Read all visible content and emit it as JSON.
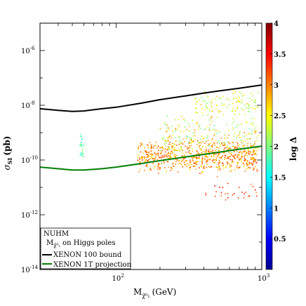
{
  "chart_data": {
    "type": "scatter",
    "xscale": "log",
    "yscale": "log",
    "xlim": [
      30,
      1000
    ],
    "ylim": [
      1e-14,
      1e-05
    ],
    "xticks": [
      {
        "value": 100,
        "label": "10",
        "exp": "2"
      },
      {
        "value": 1000,
        "label": "10",
        "exp": "3"
      }
    ],
    "yticks": [
      {
        "value": 1e-06,
        "label": "10",
        "exp": "-6"
      },
      {
        "value": 1e-08,
        "label": "10",
        "exp": "-8"
      },
      {
        "value": 1e-10,
        "label": "10",
        "exp": "-10"
      },
      {
        "value": 1e-12,
        "label": "10",
        "exp": "-12"
      },
      {
        "value": 1e-14,
        "label": "10",
        "exp": "-14"
      }
    ],
    "xlabel": "M",
    "xlabel_sub": "χ̃⁰₁",
    "xlabel_unit": "(GeV)",
    "ylabel": "σ",
    "ylabel_sub": "SI",
    "ylabel_unit": "(pb)",
    "colorbar": {
      "label": "log Δ",
      "range": [
        0,
        4
      ],
      "ticks": [
        "0.5",
        "1",
        "1.5",
        "2",
        "2.5",
        "3",
        "3.5",
        "4"
      ],
      "tick_values": [
        0.5,
        1,
        1.5,
        2,
        2.5,
        3,
        3.5,
        4
      ],
      "colormap": [
        "#00008f",
        "#0000ff",
        "#0080ff",
        "#00ffff",
        "#80ff80",
        "#ffff00",
        "#ff8000",
        "#ff0000",
        "#800000"
      ]
    },
    "series": [
      {
        "name": "XENON 100 bound",
        "color": "#000000",
        "x": [
          30,
          40,
          50,
          60,
          80,
          100,
          150,
          200,
          300,
          400,
          500,
          700,
          1000
        ],
        "y": [
          7.5e-09,
          6.5e-09,
          6e-09,
          6.2e-09,
          7.5e-09,
          8.5e-09,
          1.2e-08,
          1.6e-08,
          2.2e-08,
          2.8e-08,
          3.3e-08,
          4.2e-08,
          5.5e-08
        ]
      },
      {
        "name": "XENON 1T projection",
        "color": "#008000",
        "x": [
          30,
          40,
          50,
          60,
          80,
          100,
          150,
          200,
          300,
          400,
          500,
          700,
          1000
        ],
        "y": [
          5.5e-11,
          4.8e-11,
          4.3e-11,
          4.3e-11,
          4.8e-11,
          5.5e-11,
          7.5e-11,
          9.5e-11,
          1.3e-10,
          1.6e-10,
          1.9e-10,
          2.5e-10,
          3.2e-10
        ]
      }
    ],
    "scatter_clusters": [
      {
        "xmin": 56,
        "xmax": 60,
        "ymin": 5e-11,
        "ymax": 1.2e-09,
        "logd_min": 1.6,
        "logd_max": 2.1,
        "n": 25
      },
      {
        "xmin": 140,
        "xmax": 950,
        "ymin": 3e-11,
        "ymax": 6e-10,
        "logd_min": 2.6,
        "logd_max": 3.3,
        "n": 700
      },
      {
        "xmin": 200,
        "xmax": 950,
        "ymin": 1e-10,
        "ymax": 5e-09,
        "logd_min": 1.8,
        "logd_max": 3.0,
        "n": 250
      },
      {
        "xmin": 350,
        "xmax": 950,
        "ymin": 3e-09,
        "ymax": 4e-08,
        "logd_min": 2.0,
        "logd_max": 2.8,
        "n": 120
      },
      {
        "xmin": 400,
        "xmax": 950,
        "ymin": 2e-12,
        "ymax": 3e-11,
        "logd_min": 3.0,
        "logd_max": 3.6,
        "n": 30
      }
    ],
    "legend": {
      "placement": "bottom-left",
      "title": "NUHM",
      "subtitle_prefix": "M",
      "subtitle_sub": "χ̃⁰₁",
      "subtitle_suffix": "on Higgs poles",
      "entries": [
        {
          "label": "XENON 100 bound",
          "color": "#000000"
        },
        {
          "label": "XENON 1T projection",
          "color": "#008000"
        }
      ]
    }
  }
}
